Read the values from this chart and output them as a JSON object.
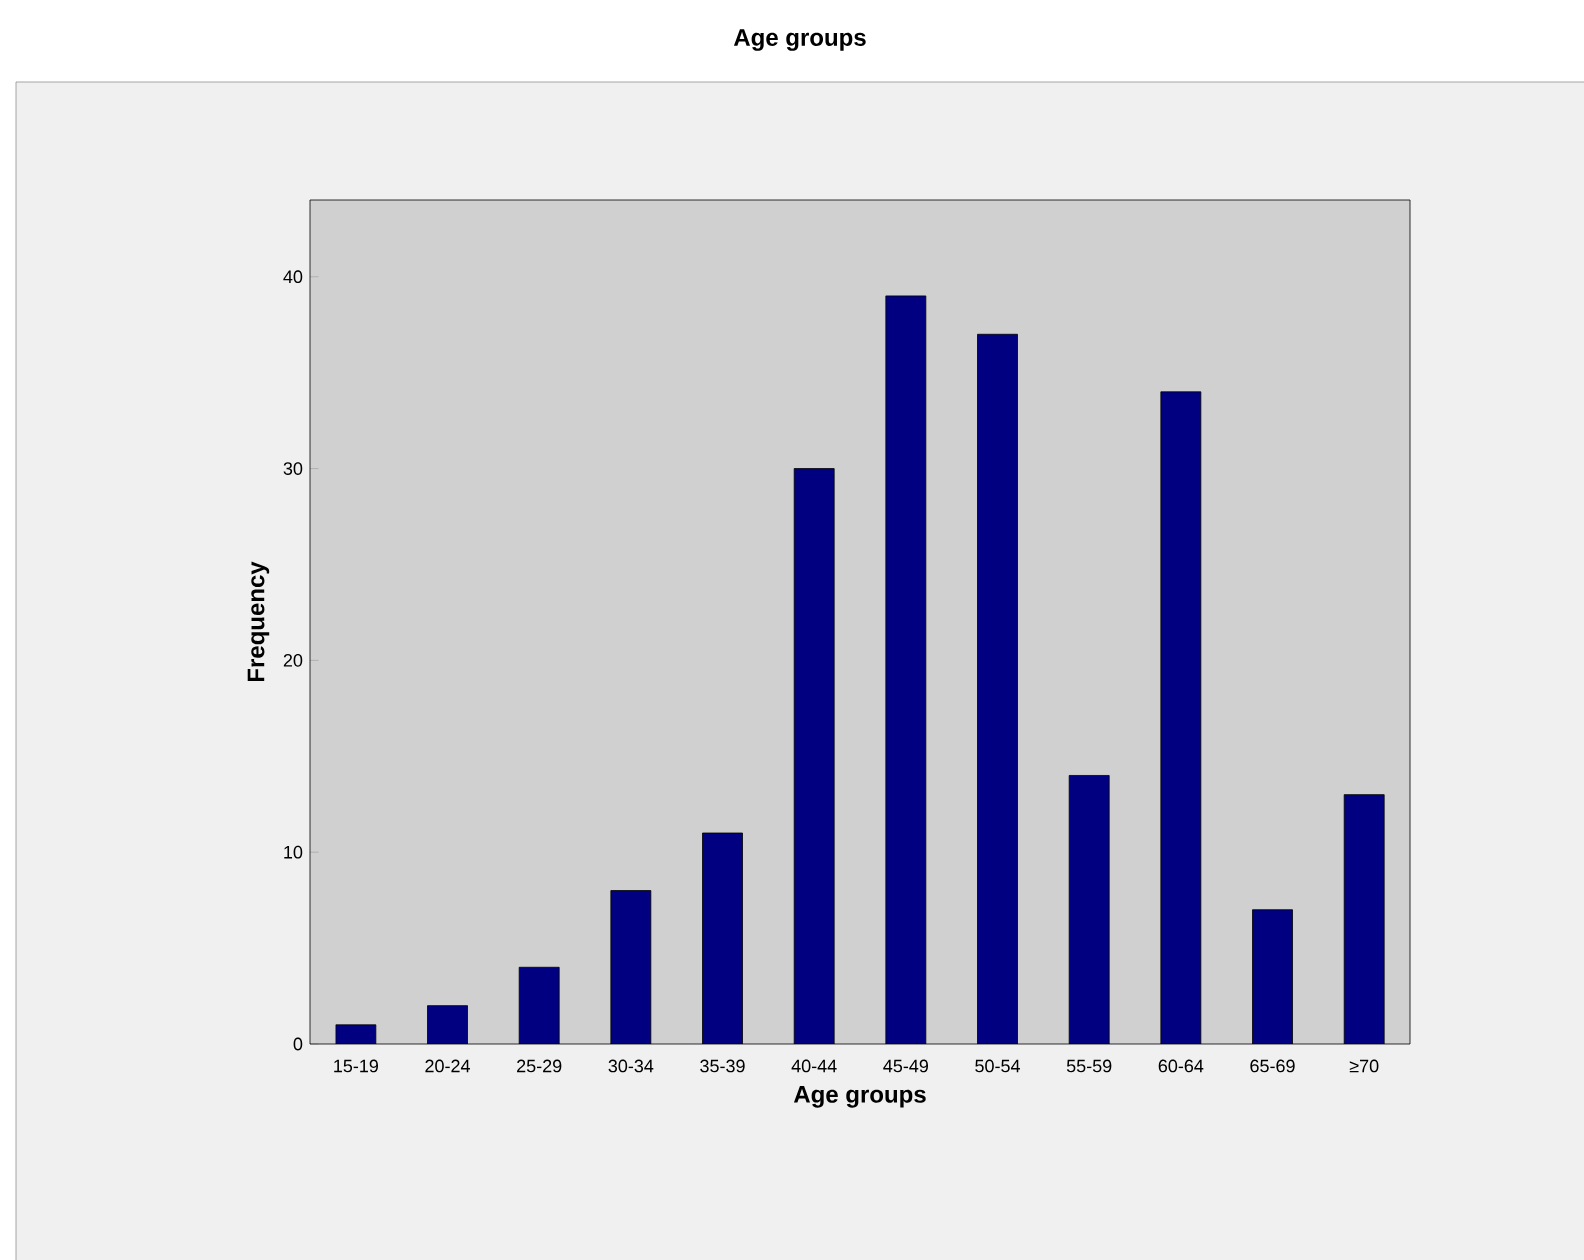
{
  "chart_data": {
    "type": "bar",
    "title": "Age groups",
    "xlabel": "Age groups",
    "ylabel": "Frequency",
    "categories": [
      "15-19",
      "20-24",
      "25-29",
      "30-34",
      "35-39",
      "40-44",
      "45-49",
      "50-54",
      "55-59",
      "60-64",
      "65-69",
      "≥70"
    ],
    "values": [
      1,
      2,
      4,
      8,
      11,
      30,
      39,
      37,
      14,
      34,
      7,
      13
    ],
    "color": "#000080",
    "ylim": [
      0,
      44
    ],
    "yticks": [
      0,
      10,
      20,
      30,
      40
    ],
    "grid": false
  }
}
